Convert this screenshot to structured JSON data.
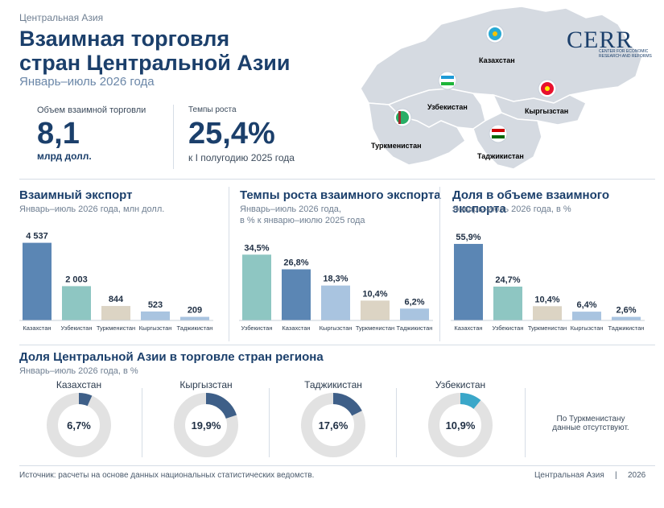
{
  "header": {
    "kicker": "Центральная Азия",
    "title_line1": "Взаимная торговля",
    "title_line2": "стран Центральной Азии",
    "subtitle": "Январь–июль 2026 года"
  },
  "kpi": {
    "trade_label": "Объем взаимной торговли",
    "trade_value": "8,1",
    "trade_unit": "млрд долл.",
    "growth_label": "Темпы роста",
    "growth_value": "25,4%",
    "growth_note": "к I полугодию 2025 года"
  },
  "map": {
    "countries": [
      "Казахстан",
      "Узбекистан",
      "Кыргызстан",
      "Туркменистан",
      "Таджикистан"
    ]
  },
  "logo": {
    "text": "CERR",
    "sub1": "CENTER FOR ECONOMIC",
    "sub2": "RESEARCH AND REFORMS"
  },
  "sections": {
    "s1_title": "Взаимный экспорт",
    "s1_sub": "Январь–июль 2026 года, млн долл.",
    "s2_title": "Темпы роста взаимного экспорта",
    "s2_sub1": "Январь–июль 2026 года,",
    "s2_sub2": "в % к январю–июлю 2025 года",
    "s3_title": "Доля в объеме взаимного экспорта",
    "s3_sub": "Январь–июль 2026 года, в %",
    "s4_title": "Доля Центральной Азии в торговле стран региона",
    "s4_sub": "Январь–июль 2026 года, в %"
  },
  "colors": {
    "Казахстан": "#5b86b4",
    "Узбекистан": "#8ec6c2",
    "Туркменистан": "#dcd4c4",
    "Кыргызстан": "#a9c4e0",
    "Таджикистан": "#a9c4e0",
    "donut_track": "#e2e2e2",
    "donut_fill": "#3e5f88",
    "donut_fill_uz": "#3aa7c9"
  },
  "chart_data": [
    {
      "type": "bar",
      "title": "Взаимный экспорт",
      "categories": [
        "Казахстан",
        "Узбекистан",
        "Туркменистан",
        "Кыргызстан",
        "Таджикистан"
      ],
      "values": [
        4537,
        2003,
        844,
        523,
        209
      ],
      "labels": [
        "4 537",
        "2 003",
        "844",
        "523",
        "209"
      ],
      "ylim": [
        0,
        4800
      ]
    },
    {
      "type": "bar",
      "title": "Темпы роста взаимного экспорта",
      "categories": [
        "Узбекистан",
        "Казахстан",
        "Кыргызстан",
        "Туркменистан",
        "Таджикистан"
      ],
      "values": [
        34.5,
        26.8,
        18.3,
        10.4,
        6.2
      ],
      "labels": [
        "34,5%",
        "26,8%",
        "18,3%",
        "10,4%",
        "6,2%"
      ],
      "ylim": [
        0,
        38
      ]
    },
    {
      "type": "bar",
      "title": "Доля в объеме взаимного экспорта",
      "categories": [
        "Казахстан",
        "Узбекистан",
        "Туркменистан",
        "Кыргызстан",
        "Таджикистан"
      ],
      "values": [
        55.9,
        24.7,
        10.4,
        6.4,
        2.6
      ],
      "labels": [
        "55,9%",
        "24,7%",
        "10,4%",
        "6,4%",
        "2,6%"
      ],
      "ylim": [
        0,
        60
      ]
    },
    {
      "type": "pie",
      "title": "Доля Центральной Азии в торговле стран региона",
      "series": [
        {
          "name": "Казахстан",
          "value": 6.7,
          "label": "6,7%"
        },
        {
          "name": "Кыргызстан",
          "value": 19.9,
          "label": "19,9%"
        },
        {
          "name": "Таджикистан",
          "value": 17.6,
          "label": "17,6%"
        },
        {
          "name": "Узбекистан",
          "value": 10.9,
          "label": "10,9%"
        }
      ]
    }
  ],
  "donut_note_line1": "По Туркменистану",
  "donut_note_line2": "данные отсутствуют.",
  "footer": {
    "source": "Источник: расчеты на основе данных национальных статистических ведомств.",
    "region": "Центральная Азия",
    "sep": "|",
    "year": "2026"
  }
}
